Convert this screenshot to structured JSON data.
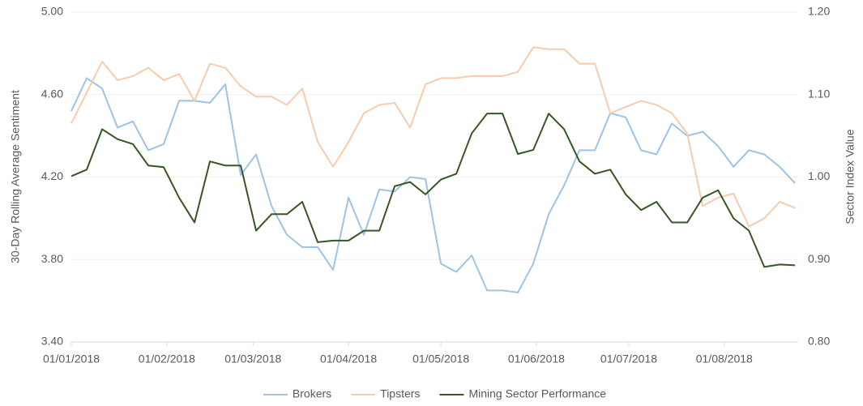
{
  "chart_data": {
    "type": "line",
    "y_label": "30-Day Rolling Average Sentiment",
    "y2_label": "Sector Index Value",
    "x": [
      "01/01/2018",
      "06/01/2018",
      "11/01/2018",
      "16/01/2018",
      "21/01/2018",
      "26/01/2018",
      "31/01/2018",
      "05/02/2018",
      "10/02/2018",
      "15/02/2018",
      "20/02/2018",
      "25/02/2018",
      "02/03/2018",
      "07/03/2018",
      "12/03/2018",
      "17/03/2018",
      "22/03/2018",
      "27/03/2018",
      "01/04/2018",
      "06/04/2018",
      "11/04/2018",
      "16/04/2018",
      "21/04/2018",
      "26/04/2018",
      "01/05/2018",
      "06/05/2018",
      "11/05/2018",
      "16/05/2018",
      "21/05/2018",
      "26/05/2018",
      "31/05/2018",
      "05/06/2018",
      "10/06/2018",
      "15/06/2018",
      "20/06/2018",
      "25/06/2018",
      "30/06/2018",
      "05/07/2018",
      "10/07/2018",
      "15/07/2018",
      "20/07/2018",
      "25/07/2018",
      "30/07/2018",
      "04/08/2018",
      "09/08/2018",
      "14/08/2018",
      "19/08/2018",
      "24/08/2018"
    ],
    "xlim": [
      "01/01/2018",
      "25/08/2018"
    ],
    "xticks": [
      "01/01/2018",
      "01/02/2018",
      "01/03/2018",
      "01/04/2018",
      "01/05/2018",
      "01/06/2018",
      "01/07/2018",
      "01/08/2018"
    ],
    "ylim": [
      3.4,
      5.0
    ],
    "yticks": [
      {
        "value": 3.4,
        "label": "3.40"
      },
      {
        "value": 3.8,
        "label": "3.80"
      },
      {
        "value": 4.2,
        "label": "4.20"
      },
      {
        "value": 4.6,
        "label": "4.60"
      },
      {
        "value": 5.0,
        "label": "5.00"
      }
    ],
    "y2lim": [
      0.8,
      1.2
    ],
    "y2ticks": [
      {
        "value": 0.8,
        "label": "0.80"
      },
      {
        "value": 0.9,
        "label": "0.90"
      },
      {
        "value": 1.0,
        "label": "1.00"
      },
      {
        "value": 1.1,
        "label": "1.10"
      },
      {
        "value": 1.2,
        "label": "1.20"
      }
    ],
    "grid": true,
    "legend": "bottom",
    "series": [
      {
        "name": "Brokers",
        "color": "#9dc3e6",
        "values": [
          4.52,
          4.68,
          4.63,
          4.44,
          4.47,
          4.33,
          4.36,
          4.57,
          4.57,
          4.56,
          4.65,
          4.21,
          4.31,
          4.06,
          3.92,
          3.86,
          3.86,
          3.75,
          4.1,
          3.92,
          4.14,
          4.13,
          4.2,
          4.19,
          3.78,
          3.74,
          3.82,
          3.65,
          3.65,
          3.64,
          3.78,
          4.02,
          4.16,
          4.33,
          4.33,
          4.51,
          4.49,
          4.33,
          4.31,
          4.46,
          4.4,
          4.42,
          4.35,
          4.25,
          4.33,
          4.31,
          4.25,
          4.17
        ]
      },
      {
        "name": "Tipsters",
        "color": "#f8cbad",
        "values": [
          4.46,
          4.61,
          4.76,
          4.67,
          4.69,
          4.73,
          4.67,
          4.7,
          4.57,
          4.75,
          4.73,
          4.64,
          4.59,
          4.59,
          4.55,
          4.63,
          4.37,
          4.25,
          4.37,
          4.51,
          4.55,
          4.56,
          4.44,
          4.65,
          4.68,
          4.68,
          4.69,
          4.69,
          4.69,
          4.71,
          4.83,
          4.82,
          4.82,
          4.75,
          4.75,
          4.51,
          4.54,
          4.57,
          4.55,
          4.51,
          4.41,
          4.06,
          4.1,
          4.12,
          3.96,
          4.0,
          4.08,
          4.05
        ]
      },
      {
        "name": "Mining Sector Performance",
        "color": "#375623",
        "axis": "y2",
        "values": [
          1.001,
          1.009,
          1.058,
          1.046,
          1.04,
          1.014,
          1.012,
          0.975,
          0.945,
          1.019,
          1.014,
          1.014,
          0.935,
          0.955,
          0.955,
          0.97,
          0.921,
          0.923,
          0.923,
          0.935,
          0.935,
          0.989,
          0.994,
          0.979,
          0.997,
          1.004,
          1.053,
          1.077,
          1.077,
          1.028,
          1.033,
          1.077,
          1.058,
          1.019,
          1.004,
          1.009,
          0.979,
          0.96,
          0.97,
          0.945,
          0.945,
          0.975,
          0.984,
          0.95,
          0.935,
          0.891,
          0.894,
          0.893
        ]
      }
    ]
  }
}
